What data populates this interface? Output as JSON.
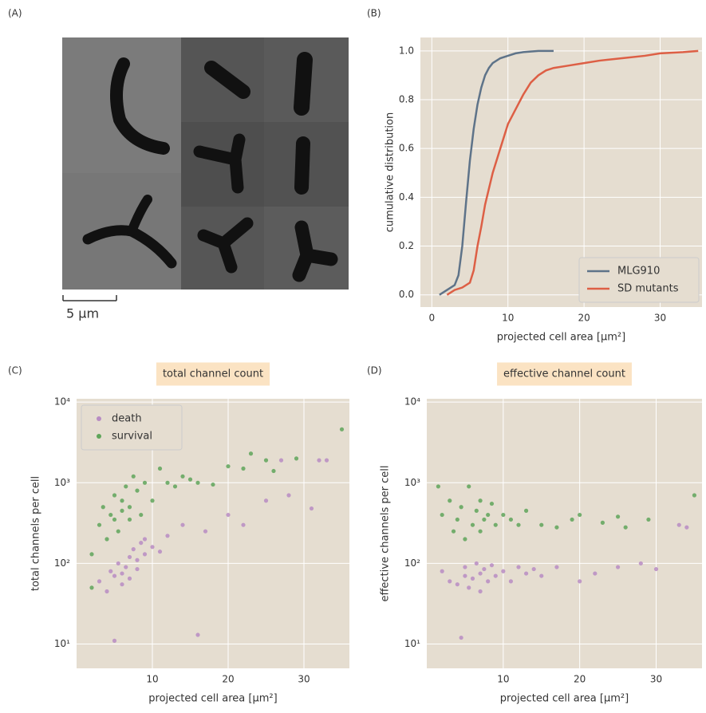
{
  "image_panel": {
    "panel_label": "(A)",
    "scale_bar": "5 μm"
  },
  "chart_data": [
    {
      "type": "line",
      "panel_label": "(B)",
      "xlabel": "projected cell area [μm²]",
      "ylabel": "cumulative distribution",
      "xlim": [
        -1.5,
        35.5
      ],
      "ylim": [
        -0.05,
        1.055
      ],
      "xticks": [
        0,
        10,
        20,
        30
      ],
      "yticks": [
        {
          "value": 0,
          "label": "0.0"
        },
        0.2,
        0.4,
        0.6,
        0.8,
        {
          "value": 1,
          "label": "1.0"
        }
      ],
      "grid": true,
      "log_y": false,
      "legend": "lower right",
      "series": [
        {
          "name": "MLG910",
          "color": "#5e7389",
          "x": [
            1,
            2,
            3,
            3.5,
            4,
            4.5,
            5,
            5.5,
            6,
            6.5,
            7,
            7.5,
            8,
            9,
            10,
            11,
            12,
            14,
            16
          ],
          "values": [
            0,
            0.02,
            0.04,
            0.08,
            0.2,
            0.38,
            0.55,
            0.68,
            0.78,
            0.85,
            0.9,
            0.93,
            0.95,
            0.97,
            0.98,
            0.99,
            0.995,
            1,
            1
          ]
        },
        {
          "name": "SD mutants",
          "color": "#dd5f45",
          "x": [
            2,
            3,
            4,
            5,
            5.5,
            6,
            6.5,
            7,
            8,
            9,
            10,
            11,
            12,
            13,
            14,
            15,
            16,
            18,
            20,
            22,
            25,
            28,
            30,
            33,
            35
          ],
          "values": [
            0,
            0.02,
            0.03,
            0.05,
            0.1,
            0.2,
            0.28,
            0.37,
            0.5,
            0.6,
            0.7,
            0.76,
            0.82,
            0.87,
            0.9,
            0.92,
            0.93,
            0.94,
            0.95,
            0.96,
            0.97,
            0.98,
            0.99,
            0.995,
            1
          ]
        }
      ]
    },
    {
      "type": "scatter",
      "panel_label": "(C)",
      "title": "total channel count",
      "xlabel": "projected cell area [μm²]",
      "ylabel": "total channels per cell",
      "xlim": [
        0,
        36
      ],
      "ylim": [
        5,
        11000
      ],
      "xticks": [
        10,
        20,
        30
      ],
      "yticks": [
        {
          "value": 10,
          "label": "10¹"
        },
        {
          "value": 100,
          "label": "10²"
        },
        {
          "value": 1000,
          "label": "10³"
        },
        {
          "value": 10000,
          "label": "10⁴"
        }
      ],
      "grid": true,
      "log_y": true,
      "legend": "upper left",
      "series": [
        {
          "name": "death",
          "color": "#b88cc3",
          "x": [
            3,
            4,
            4.5,
            5,
            5,
            5.5,
            6,
            6,
            6.5,
            7,
            7,
            7.5,
            8,
            8,
            8.5,
            9,
            9,
            10,
            11,
            12,
            14,
            16,
            17,
            20,
            22,
            25,
            28,
            31,
            32,
            33,
            27
          ],
          "values": [
            60,
            45,
            80,
            70,
            11,
            100,
            55,
            75,
            90,
            65,
            120,
            150,
            85,
            110,
            180,
            130,
            200,
            160,
            140,
            220,
            300,
            13,
            250,
            400,
            300,
            600,
            700,
            480,
            1900,
            1900,
            1900
          ]
        },
        {
          "name": "survival",
          "color": "#5fa55a",
          "x": [
            2,
            2,
            3,
            3.5,
            4,
            4.5,
            5,
            5,
            5.5,
            6,
            6,
            6.5,
            7,
            7,
            7.5,
            8,
            8.5,
            9,
            10,
            11,
            12,
            13,
            14,
            15,
            16,
            18,
            20,
            22,
            23,
            25,
            26,
            29,
            35
          ],
          "values": [
            130,
            50,
            300,
            500,
            200,
            400,
            700,
            350,
            250,
            600,
            450,
            900,
            350,
            500,
            1200,
            800,
            400,
            1000,
            600,
            1500,
            1000,
            900,
            1200,
            1100,
            1000,
            950,
            1600,
            1500,
            2300,
            1900,
            1400,
            2000,
            4600
          ]
        }
      ]
    },
    {
      "type": "scatter",
      "panel_label": "(D)",
      "title": "effective channel count",
      "xlabel": "projected cell area [μm²]",
      "ylabel": "effective channels per cell",
      "xlim": [
        0,
        36
      ],
      "ylim": [
        5,
        11000
      ],
      "xticks": [
        10,
        20,
        30
      ],
      "yticks": [
        {
          "value": 10,
          "label": "10¹"
        },
        {
          "value": 100,
          "label": "10²"
        },
        {
          "value": 1000,
          "label": "10³"
        },
        {
          "value": 10000,
          "label": "10⁴"
        }
      ],
      "grid": true,
      "log_y": true,
      "series": [
        {
          "color": "#b88cc3",
          "x": [
            2,
            3,
            4,
            4.5,
            5,
            5,
            5.5,
            6,
            6.5,
            7,
            7,
            7.5,
            8,
            8.5,
            9,
            10,
            11,
            12,
            13,
            14,
            15,
            17,
            20,
            22,
            25,
            28,
            30,
            33,
            34
          ],
          "values": [
            80,
            60,
            55,
            12,
            70,
            90,
            50,
            65,
            100,
            75,
            45,
            85,
            60,
            95,
            70,
            80,
            60,
            90,
            75,
            85,
            70,
            90,
            60,
            75,
            90,
            100,
            85,
            300,
            280
          ]
        },
        {
          "color": "#5fa55a",
          "x": [
            1.5,
            2,
            3,
            3.5,
            4,
            4.5,
            5,
            5.5,
            6,
            6.5,
            7,
            7,
            7.5,
            8,
            8.5,
            9,
            10,
            11,
            12,
            13,
            15,
            17,
            19,
            20,
            23,
            25,
            26,
            29,
            35
          ],
          "values": [
            900,
            400,
            600,
            250,
            350,
            500,
            200,
            900,
            300,
            450,
            250,
            600,
            350,
            400,
            550,
            300,
            400,
            350,
            300,
            450,
            300,
            280,
            350,
            400,
            320,
            380,
            280,
            350,
            700
          ]
        }
      ]
    }
  ]
}
